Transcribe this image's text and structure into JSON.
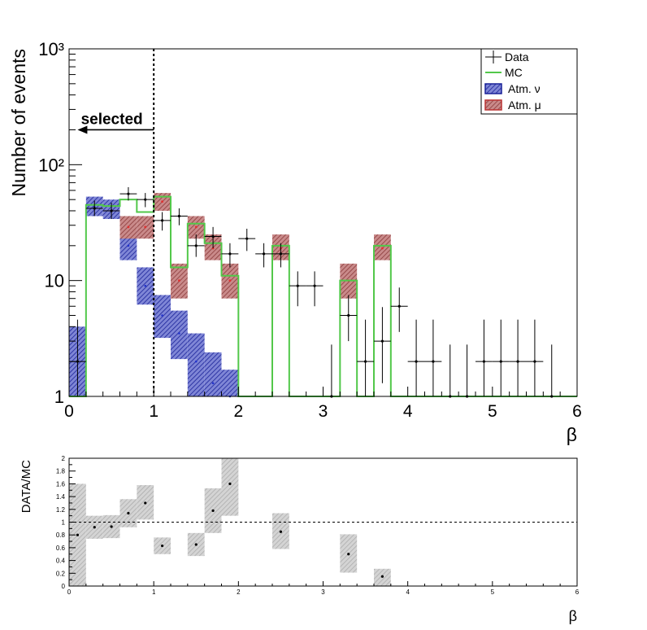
{
  "chart_data": [
    {
      "type": "histogram",
      "ylabel": "Number of events",
      "xlabel": "β",
      "y_scale": "log",
      "xlim": [
        0,
        6
      ],
      "ylim": [
        1,
        1000
      ],
      "x_ticks": [
        "0",
        "1",
        "2",
        "3",
        "4",
        "5",
        "6"
      ],
      "y_ticks": [
        {
          "value": 1,
          "label": "1"
        },
        {
          "value": 10,
          "label": "10"
        },
        {
          "value": 100,
          "label": "10²"
        },
        {
          "value": 1000,
          "label": "10³"
        }
      ],
      "legend": {
        "placement": "top-right",
        "entries": [
          {
            "key": "data",
            "label": "Data"
          },
          {
            "key": "mc",
            "label": "MC"
          },
          {
            "key": "nu",
            "label": "Atm. ν"
          },
          {
            "key": "mu",
            "label": "Atm. μ"
          }
        ]
      },
      "cut": {
        "x": 1.0,
        "label": "selected",
        "direction": "left",
        "arrow_y": 200
      },
      "bin_width": 0.2,
      "series": {
        "data": [
          {
            "x": 0.1,
            "y": 2,
            "lo": 1,
            "hi": 4.6
          },
          {
            "x": 0.3,
            "y": 42,
            "lo": 36,
            "hi": 49
          },
          {
            "x": 0.5,
            "y": 40,
            "lo": 34,
            "hi": 47
          },
          {
            "x": 0.7,
            "y": 56,
            "lo": 49,
            "hi": 64
          },
          {
            "x": 0.9,
            "y": 50,
            "lo": 43,
            "hi": 57
          },
          {
            "x": 1.1,
            "y": 33,
            "lo": 27,
            "hi": 39
          },
          {
            "x": 1.3,
            "y": 36,
            "lo": 30,
            "hi": 42
          },
          {
            "x": 1.5,
            "y": 20,
            "lo": 16,
            "hi": 25
          },
          {
            "x": 1.7,
            "y": 24,
            "lo": 19,
            "hi": 29
          },
          {
            "x": 1.9,
            "y": 17,
            "lo": 13,
            "hi": 21
          },
          {
            "x": 2.1,
            "y": 23,
            "lo": 18,
            "hi": 28
          },
          {
            "x": 2.3,
            "y": 17,
            "lo": 13,
            "hi": 21
          },
          {
            "x": 2.5,
            "y": 17,
            "lo": 13,
            "hi": 21
          },
          {
            "x": 2.7,
            "y": 9,
            "lo": 6,
            "hi": 12
          },
          {
            "x": 2.9,
            "y": 9,
            "lo": 6,
            "hi": 12
          },
          {
            "x": 3.1,
            "y": 1,
            "lo": 1,
            "hi": 2.8
          },
          {
            "x": 3.3,
            "y": 5,
            "lo": 3,
            "hi": 7.5
          },
          {
            "x": 3.5,
            "y": 2,
            "lo": 1,
            "hi": 4.6
          },
          {
            "x": 3.7,
            "y": 3,
            "lo": 1.3,
            "hi": 5.9
          },
          {
            "x": 3.9,
            "y": 6,
            "lo": 3.6,
            "hi": 8.7
          },
          {
            "x": 4.1,
            "y": 2,
            "lo": 1,
            "hi": 4.6
          },
          {
            "x": 4.3,
            "y": 2,
            "lo": 1,
            "hi": 4.6
          },
          {
            "x": 4.5,
            "y": 1,
            "lo": 1,
            "hi": 2.8
          },
          {
            "x": 4.7,
            "y": 1,
            "lo": 1,
            "hi": 2.8
          },
          {
            "x": 4.9,
            "y": 2,
            "lo": 1,
            "hi": 4.6
          },
          {
            "x": 5.1,
            "y": 2,
            "lo": 1,
            "hi": 4.6
          },
          {
            "x": 5.3,
            "y": 2,
            "lo": 1,
            "hi": 4.6
          },
          {
            "x": 5.5,
            "y": 2,
            "lo": 1,
            "hi": 4.6
          },
          {
            "x": 5.7,
            "y": 1,
            "lo": 1,
            "hi": 2.8
          }
        ],
        "mc": [
          {
            "lo": 0.0,
            "hi": 0.2,
            "y": 1
          },
          {
            "lo": 0.2,
            "hi": 0.4,
            "y": 45
          },
          {
            "lo": 0.4,
            "hi": 0.6,
            "y": 44
          },
          {
            "lo": 0.6,
            "hi": 0.8,
            "y": 50
          },
          {
            "lo": 0.8,
            "hi": 1.0,
            "y": 39
          },
          {
            "lo": 1.0,
            "hi": 1.2,
            "y": 53
          },
          {
            "lo": 1.2,
            "hi": 1.4,
            "y": 13
          },
          {
            "lo": 1.4,
            "hi": 1.6,
            "y": 31
          },
          {
            "lo": 1.6,
            "hi": 1.8,
            "y": 21
          },
          {
            "lo": 1.8,
            "hi": 2.0,
            "y": 11
          },
          {
            "lo": 2.0,
            "hi": 2.4,
            "y": 1
          },
          {
            "lo": 2.4,
            "hi": 2.6,
            "y": 20
          },
          {
            "lo": 2.6,
            "hi": 3.2,
            "y": 1
          },
          {
            "lo": 3.2,
            "hi": 3.4,
            "y": 10
          },
          {
            "lo": 3.4,
            "hi": 3.6,
            "y": 1
          },
          {
            "lo": 3.6,
            "hi": 3.8,
            "y": 20
          },
          {
            "lo": 3.8,
            "hi": 6.0,
            "y": 1
          }
        ],
        "nu": [
          {
            "x": 0.1,
            "y": 2,
            "lo": 1,
            "hi": 4
          },
          {
            "x": 0.3,
            "y": 43,
            "lo": 36,
            "hi": 53
          },
          {
            "x": 0.5,
            "y": 40,
            "lo": 34,
            "hi": 50
          },
          {
            "x": 0.7,
            "y": 20,
            "lo": 15,
            "hi": 27
          },
          {
            "x": 0.9,
            "y": 9,
            "lo": 6.2,
            "hi": 13
          },
          {
            "x": 1.1,
            "y": 5,
            "lo": 3.2,
            "hi": 7.5
          },
          {
            "x": 1.3,
            "y": 3.5,
            "lo": 2.1,
            "hi": 5.5
          },
          {
            "x": 1.5,
            "y": 2,
            "lo": 1,
            "hi": 3.5
          },
          {
            "x": 1.7,
            "y": 1.3,
            "lo": 1,
            "hi": 2.4
          },
          {
            "x": 1.9,
            "y": 1,
            "lo": 1,
            "hi": 1.7
          }
        ],
        "mu": [
          {
            "x": 0.7,
            "y": 29,
            "lo": 23,
            "hi": 36
          },
          {
            "x": 0.9,
            "y": 29,
            "lo": 23,
            "hi": 36
          },
          {
            "x": 1.1,
            "y": 48,
            "lo": 40,
            "hi": 57
          },
          {
            "x": 1.3,
            "y": 10,
            "lo": 7,
            "hi": 14
          },
          {
            "x": 1.5,
            "y": 29,
            "lo": 23,
            "hi": 36
          },
          {
            "x": 1.7,
            "y": 19,
            "lo": 15,
            "hi": 25
          },
          {
            "x": 1.9,
            "y": 10,
            "lo": 7,
            "hi": 14
          },
          {
            "x": 2.5,
            "y": 19,
            "lo": 15,
            "hi": 25
          },
          {
            "x": 3.3,
            "y": 10,
            "lo": 7,
            "hi": 14
          },
          {
            "x": 3.7,
            "y": 19,
            "lo": 15,
            "hi": 25
          }
        ]
      },
      "colors": {
        "mc": "#52c84a",
        "nu": "#2233cc",
        "mu": "#bb3333"
      }
    },
    {
      "type": "scatter",
      "ylabel": "DATA/MC",
      "xlabel": "β",
      "xlim": [
        0,
        6
      ],
      "ylim": [
        0,
        2
      ],
      "reference_line": 1,
      "x_ticks": [
        "0",
        "1",
        "2",
        "3",
        "4",
        "5",
        "6"
      ],
      "y_ticks": [
        "0",
        "0.2",
        "0.4",
        "0.6",
        "0.8",
        "1",
        "1.2",
        "1.4",
        "1.6",
        "1.8",
        "2"
      ],
      "points": [
        {
          "x": 0.1,
          "y": 0.8,
          "lo": 0.0,
          "hi": 1.6
        },
        {
          "x": 0.3,
          "y": 0.92,
          "lo": 0.74,
          "hi": 1.1
        },
        {
          "x": 0.5,
          "y": 0.93,
          "lo": 0.75,
          "hi": 1.11
        },
        {
          "x": 0.7,
          "y": 1.14,
          "lo": 0.92,
          "hi": 1.36
        },
        {
          "x": 0.9,
          "y": 1.3,
          "lo": 1.04,
          "hi": 1.58
        },
        {
          "x": 1.1,
          "y": 0.63,
          "lo": 0.5,
          "hi": 0.76
        },
        {
          "x": 1.5,
          "y": 0.65,
          "lo": 0.47,
          "hi": 0.83
        },
        {
          "x": 1.7,
          "y": 1.18,
          "lo": 0.83,
          "hi": 1.53
        },
        {
          "x": 1.9,
          "y": 1.6,
          "lo": 1.1,
          "hi": 2.1
        },
        {
          "x": 2.5,
          "y": 0.85,
          "lo": 0.58,
          "hi": 1.14
        },
        {
          "x": 3.3,
          "y": 0.5,
          "lo": 0.21,
          "hi": 0.81
        },
        {
          "x": 3.7,
          "y": 0.15,
          "lo": 0.0,
          "hi": 0.27
        }
      ]
    }
  ]
}
